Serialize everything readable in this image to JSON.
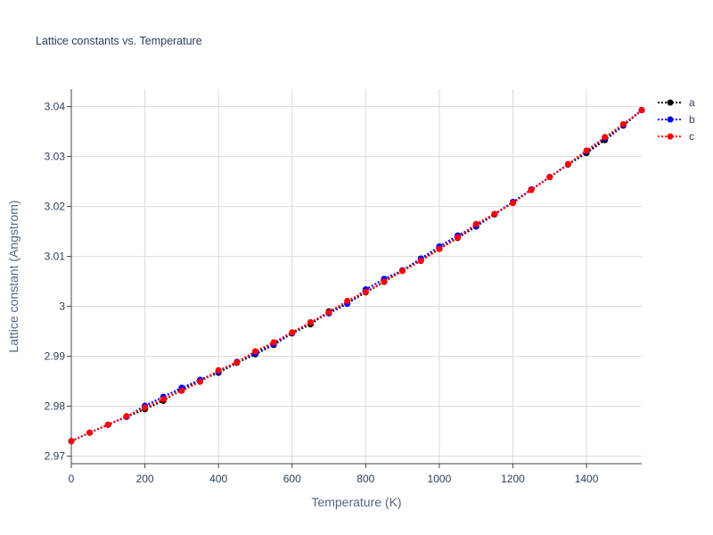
{
  "chart_data": {
    "type": "line",
    "title": "Lattice constants vs. Temperature",
    "xlabel": "Temperature (K)",
    "ylabel": "Lattice constant (Angstrom)",
    "xlim": [
      0,
      1550
    ],
    "ylim": [
      2.9685,
      3.0435
    ],
    "x_ticks": [
      0,
      200,
      400,
      600,
      800,
      1000,
      1200,
      1400
    ],
    "y_ticks": [
      2.97,
      2.98,
      2.99,
      3,
      3.01,
      3.02,
      3.03,
      3.04
    ],
    "grid": true,
    "legend_position": "top-right",
    "series": [
      {
        "name": "a",
        "color": "#000000",
        "x": [
          0,
          50,
          100,
          150,
          200,
          250,
          300,
          350,
          400,
          450,
          500,
          550,
          600,
          650,
          700,
          750,
          800,
          850,
          900,
          950,
          1000,
          1050,
          1100,
          1150,
          1200,
          1250,
          1300,
          1350,
          1400,
          1450,
          1500,
          1550
        ],
        "y": [
          2.973,
          2.9747,
          2.9763,
          2.9779,
          2.9794,
          2.9811,
          2.9834,
          2.9852,
          2.9867,
          2.9887,
          2.9904,
          2.9923,
          2.9946,
          2.9964,
          2.999,
          3.0006,
          3.0028,
          3.0049,
          3.0072,
          3.0093,
          3.0115,
          3.0137,
          3.016,
          3.0184,
          3.0209,
          3.0234,
          3.0259,
          3.0284,
          3.0307,
          3.0333,
          3.0362,
          3.0393
        ]
      },
      {
        "name": "b",
        "color": "#0000ff",
        "x": [
          0,
          50,
          100,
          150,
          200,
          250,
          300,
          350,
          400,
          450,
          500,
          550,
          600,
          650,
          700,
          750,
          800,
          850,
          900,
          950,
          1000,
          1050,
          1100,
          1150,
          1200,
          1250,
          1300,
          1350,
          1400,
          1450,
          1500,
          1550
        ],
        "y": [
          2.973,
          2.9747,
          2.9763,
          2.9779,
          2.9801,
          2.9819,
          2.9837,
          2.9853,
          2.9869,
          2.9889,
          2.9906,
          2.9925,
          2.9947,
          2.9968,
          2.9986,
          3.0005,
          3.0034,
          3.0055,
          3.0072,
          3.0096,
          3.012,
          3.0142,
          3.0161,
          3.0185,
          3.0209,
          3.0234,
          3.0259,
          3.0285,
          3.031,
          3.0337,
          3.0363,
          3.0393
        ]
      },
      {
        "name": "c",
        "color": "#ff0000",
        "x": [
          0,
          50,
          100,
          150,
          200,
          250,
          300,
          350,
          400,
          450,
          500,
          550,
          600,
          650,
          700,
          750,
          800,
          850,
          900,
          950,
          1000,
          1050,
          1100,
          1150,
          1200,
          1250,
          1300,
          1350,
          1400,
          1450,
          1500,
          1550
        ],
        "y": [
          2.973,
          2.9747,
          2.9763,
          2.978,
          2.9797,
          2.9814,
          2.9831,
          2.9849,
          2.9872,
          2.9888,
          2.991,
          2.9928,
          2.9948,
          2.9968,
          2.9988,
          3.0011,
          3.0029,
          3.005,
          3.0071,
          3.0091,
          3.0115,
          3.0138,
          3.0165,
          3.0185,
          3.0207,
          3.0233,
          3.0259,
          3.0285,
          3.0312,
          3.0339,
          3.0365,
          3.0393
        ]
      }
    ]
  }
}
